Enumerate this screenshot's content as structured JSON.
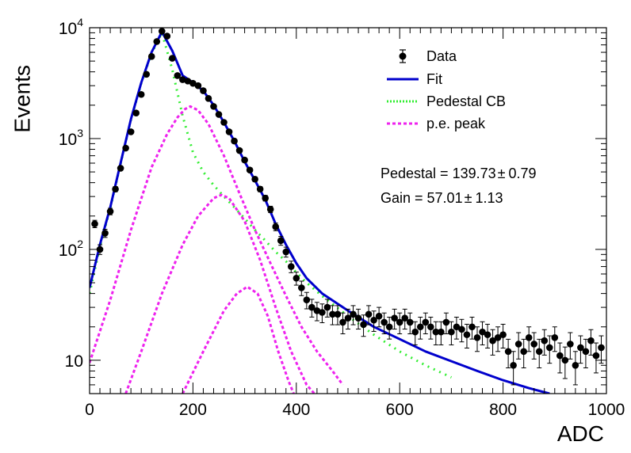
{
  "chart_data": {
    "type": "scatter",
    "xlabel": "ADC",
    "ylabel": "Events",
    "xlim": [
      0,
      1000
    ],
    "ylim": [
      5,
      10000
    ],
    "yscale": "log",
    "x_ticks": [
      {
        "value": 0,
        "label": "0"
      },
      {
        "value": 200,
        "label": "200"
      },
      {
        "value": 400,
        "label": "400"
      },
      {
        "value": 600,
        "label": "600"
      },
      {
        "value": 800,
        "label": "800"
      },
      {
        "value": 1000,
        "label": "1000"
      }
    ],
    "y_ticks": [
      {
        "value": 10,
        "base": "10",
        "exp": ""
      },
      {
        "value": 100,
        "base": "10",
        "exp": "2"
      },
      {
        "value": 1000,
        "base": "10",
        "exp": "3"
      },
      {
        "value": 10000,
        "base": "10",
        "exp": "4"
      }
    ],
    "legend": {
      "position": "top-right",
      "entries": [
        {
          "label": "Data",
          "style": "marker",
          "color": "#000000"
        },
        {
          "label": "Fit",
          "style": "solid",
          "color": "#0000cc"
        },
        {
          "label": "Pedestal CB",
          "style": "dotted",
          "color": "#33ee33"
        },
        {
          "label": "p.e. peak",
          "style": "dashed",
          "color": "#ee22ee"
        }
      ]
    },
    "annotations": [
      {
        "label": "Pedestal = 139.73",
        "pm": "±",
        "error": "0.79"
      },
      {
        "label": "Gain = 57.01",
        "pm": "±",
        "error": "1.13"
      }
    ],
    "series": [
      {
        "name": "Data",
        "type": "scatter_errorbars",
        "color": "#000000",
        "points": [
          [
            10,
            170
          ],
          [
            20,
            100
          ],
          [
            30,
            140
          ],
          [
            40,
            220
          ],
          [
            50,
            350
          ],
          [
            60,
            540
          ],
          [
            70,
            820
          ],
          [
            80,
            1150
          ],
          [
            90,
            1700
          ],
          [
            100,
            2500
          ],
          [
            110,
            3800
          ],
          [
            120,
            5500
          ],
          [
            130,
            7500
          ],
          [
            140,
            9300
          ],
          [
            150,
            8400
          ],
          [
            160,
            5300
          ],
          [
            170,
            3700
          ],
          [
            180,
            3400
          ],
          [
            190,
            3300
          ],
          [
            200,
            3150
          ],
          [
            210,
            3000
          ],
          [
            220,
            2700
          ],
          [
            230,
            2300
          ],
          [
            240,
            1950
          ],
          [
            250,
            1650
          ],
          [
            260,
            1400
          ],
          [
            270,
            1150
          ],
          [
            280,
            950
          ],
          [
            290,
            780
          ],
          [
            300,
            640
          ],
          [
            310,
            520
          ],
          [
            320,
            430
          ],
          [
            330,
            350
          ],
          [
            340,
            290
          ],
          [
            350,
            230
          ],
          [
            360,
            160
          ],
          [
            370,
            120
          ],
          [
            380,
            95
          ],
          [
            390,
            70
          ],
          [
            400,
            55
          ],
          [
            410,
            45
          ],
          [
            420,
            35
          ],
          [
            430,
            30
          ],
          [
            440,
            28
          ],
          [
            450,
            27
          ],
          [
            460,
            30
          ],
          [
            470,
            26
          ],
          [
            480,
            26
          ],
          [
            490,
            22
          ],
          [
            500,
            24
          ],
          [
            510,
            26
          ],
          [
            520,
            24
          ],
          [
            530,
            21
          ],
          [
            540,
            26
          ],
          [
            550,
            23
          ],
          [
            560,
            25
          ],
          [
            570,
            22
          ],
          [
            580,
            20
          ],
          [
            590,
            24
          ],
          [
            600,
            22
          ],
          [
            610,
            24
          ],
          [
            620,
            22
          ],
          [
            630,
            18
          ],
          [
            640,
            20
          ],
          [
            650,
            22
          ],
          [
            660,
            20
          ],
          [
            670,
            18
          ],
          [
            680,
            18
          ],
          [
            690,
            22
          ],
          [
            700,
            18
          ],
          [
            710,
            20
          ],
          [
            720,
            19
          ],
          [
            730,
            17
          ],
          [
            740,
            20
          ],
          [
            750,
            16
          ],
          [
            760,
            18
          ],
          [
            770,
            17
          ],
          [
            780,
            15
          ],
          [
            790,
            16
          ],
          [
            800,
            17
          ],
          [
            810,
            12
          ],
          [
            820,
            9
          ],
          [
            830,
            14
          ],
          [
            840,
            12
          ],
          [
            850,
            16
          ],
          [
            860,
            14
          ],
          [
            870,
            12
          ],
          [
            880,
            15
          ],
          [
            890,
            13
          ],
          [
            900,
            16
          ],
          [
            910,
            11
          ],
          [
            920,
            10
          ],
          [
            930,
            14
          ],
          [
            940,
            9
          ],
          [
            950,
            13
          ],
          [
            960,
            12
          ],
          [
            970,
            15
          ],
          [
            980,
            11
          ],
          [
            990,
            13
          ]
        ]
      },
      {
        "name": "Fit",
        "type": "line",
        "color": "#0000cc",
        "points": [
          [
            0,
            45
          ],
          [
            20,
            110
          ],
          [
            40,
            240
          ],
          [
            60,
            600
          ],
          [
            80,
            1500
          ],
          [
            100,
            3200
          ],
          [
            120,
            6000
          ],
          [
            140,
            9200
          ],
          [
            160,
            6200
          ],
          [
            180,
            3700
          ],
          [
            200,
            3200
          ],
          [
            220,
            2700
          ],
          [
            240,
            2000
          ],
          [
            260,
            1400
          ],
          [
            280,
            950
          ],
          [
            300,
            620
          ],
          [
            320,
            420
          ],
          [
            340,
            280
          ],
          [
            360,
            170
          ],
          [
            380,
            110
          ],
          [
            400,
            75
          ],
          [
            420,
            55
          ],
          [
            450,
            40
          ],
          [
            500,
            28
          ],
          [
            550,
            20
          ],
          [
            600,
            15.5
          ],
          [
            650,
            12
          ],
          [
            700,
            9.8
          ],
          [
            750,
            8
          ],
          [
            800,
            6.6
          ],
          [
            850,
            5.6
          ],
          [
            890,
            5
          ]
        ]
      },
      {
        "name": "Pedestal CB",
        "type": "line",
        "color": "#33ee33",
        "points": [
          [
            0,
            40
          ],
          [
            20,
            105
          ],
          [
            40,
            235
          ],
          [
            60,
            590
          ],
          [
            80,
            1480
          ],
          [
            100,
            3150
          ],
          [
            120,
            5900
          ],
          [
            140,
            9000
          ],
          [
            160,
            4200
          ],
          [
            180,
            1600
          ],
          [
            200,
            750
          ],
          [
            220,
            500
          ],
          [
            240,
            380
          ],
          [
            260,
            300
          ],
          [
            280,
            240
          ],
          [
            300,
            190
          ],
          [
            320,
            150
          ],
          [
            340,
            120
          ],
          [
            360,
            95
          ],
          [
            380,
            78
          ],
          [
            400,
            62
          ],
          [
            420,
            50
          ],
          [
            450,
            38
          ],
          [
            500,
            25
          ],
          [
            550,
            17
          ],
          [
            600,
            12
          ],
          [
            650,
            9
          ],
          [
            700,
            7
          ]
        ]
      },
      {
        "name": "p.e. peak",
        "type": "line",
        "color": "#ee22ee",
        "points": [
          [
            0,
            9.5
          ],
          [
            40,
            35
          ],
          [
            80,
            150
          ],
          [
            120,
            550
          ],
          [
            150,
            1100
          ],
          [
            170,
            1550
          ],
          [
            185,
            1850
          ],
          [
            195,
            1950
          ],
          [
            210,
            1800
          ],
          [
            230,
            1350
          ],
          [
            260,
            700
          ],
          [
            290,
            320
          ],
          [
            320,
            150
          ],
          [
            350,
            75
          ],
          [
            380,
            38
          ],
          [
            410,
            20
          ],
          [
            440,
            12
          ],
          [
            470,
            8
          ],
          [
            490,
            6
          ]
        ]
      },
      {
        "name": "p.e. peak",
        "type": "line",
        "color": "#ee22ee",
        "points": [
          [
            70,
            5
          ],
          [
            100,
            12
          ],
          [
            140,
            40
          ],
          [
            180,
            110
          ],
          [
            210,
            200
          ],
          [
            240,
            290
          ],
          [
            255,
            310
          ],
          [
            270,
            290
          ],
          [
            300,
            180
          ],
          [
            330,
            80
          ],
          [
            360,
            30
          ],
          [
            390,
            12
          ],
          [
            420,
            6
          ],
          [
            435,
            5
          ]
        ]
      },
      {
        "name": "p.e. peak",
        "type": "line",
        "color": "#ee22ee",
        "points": [
          [
            180,
            5
          ],
          [
            220,
            12
          ],
          [
            260,
            28
          ],
          [
            285,
            40
          ],
          [
            305,
            46
          ],
          [
            325,
            40
          ],
          [
            345,
            25
          ],
          [
            365,
            12
          ],
          [
            385,
            6.5
          ],
          [
            395,
            5
          ]
        ]
      }
    ]
  }
}
